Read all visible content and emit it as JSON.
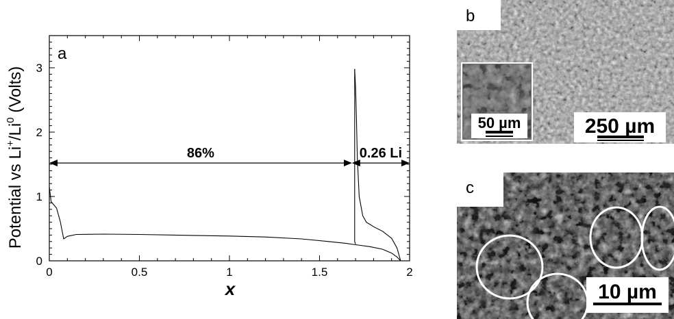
{
  "figure": {
    "panel_a": {
      "label": "a",
      "ylabel_main": "Potential vs Li",
      "ylabel_sup1": "+",
      "ylabel_mid": "/Li",
      "ylabel_sup2": "0",
      "ylabel_end": " (Volts)",
      "xlabel": "x",
      "annotation_left": "86%",
      "annotation_right": "0.26 Li"
    },
    "panel_b": {
      "label": "b",
      "inset_scale": "50 µm",
      "main_scale": "250 µm"
    },
    "panel_c": {
      "label": "c",
      "scale": "10 µm"
    },
    "colors": {
      "line": "#000000",
      "sem_b_background": "#9a9a9a",
      "sem_c_background": "#3a3a3a",
      "circle": "#ffffff"
    }
  },
  "chart_data": {
    "type": "line",
    "title": "",
    "xlabel": "x",
    "ylabel": "Potential vs Li+/Li0 (Volts)",
    "xlim": [
      0,
      2
    ],
    "ylim": [
      0,
      3.5
    ],
    "x_ticks": [
      0,
      0.5,
      1,
      1.5,
      2
    ],
    "x_tick_labels": [
      "0",
      "0.5",
      "1",
      "1.5",
      "2"
    ],
    "y_ticks": [
      0,
      1,
      2,
      3
    ],
    "y_tick_labels": [
      "0",
      "1",
      "2",
      "3"
    ],
    "grid": false,
    "series": [
      {
        "role": "discharge",
        "points": [
          [
            0.0,
            1.15
          ],
          [
            0.01,
            0.92
          ],
          [
            0.04,
            0.82
          ],
          [
            0.06,
            0.62
          ],
          [
            0.08,
            0.34
          ],
          [
            0.1,
            0.38
          ],
          [
            0.15,
            0.41
          ],
          [
            0.3,
            0.415
          ],
          [
            0.5,
            0.41
          ],
          [
            0.8,
            0.395
          ],
          [
            1.0,
            0.385
          ],
          [
            1.2,
            0.37
          ],
          [
            1.4,
            0.34
          ],
          [
            1.55,
            0.3
          ],
          [
            1.65,
            0.27
          ],
          [
            1.7,
            0.25
          ],
          [
            1.78,
            0.22
          ],
          [
            1.85,
            0.18
          ],
          [
            1.9,
            0.12
          ],
          [
            1.93,
            0.06
          ],
          [
            1.95,
            0.0
          ]
        ]
      },
      {
        "role": "charge",
        "points": [
          [
            1.95,
            0.0
          ],
          [
            1.93,
            0.2
          ],
          [
            1.9,
            0.35
          ],
          [
            1.85,
            0.46
          ],
          [
            1.8,
            0.53
          ],
          [
            1.76,
            0.6
          ],
          [
            1.74,
            0.7
          ],
          [
            1.72,
            1.0
          ],
          [
            1.71,
            1.6
          ],
          [
            1.705,
            2.2
          ],
          [
            1.7,
            2.7
          ],
          [
            1.695,
            2.98
          ]
        ]
      },
      {
        "role": "jump",
        "points": [
          [
            1.695,
            2.98
          ],
          [
            1.695,
            0.3
          ],
          [
            1.7,
            0.26
          ]
        ]
      }
    ],
    "annotations": [
      {
        "text": "86%",
        "x_from": 0,
        "x_to": 1.68,
        "y": 1.52
      },
      {
        "text": "0.26 Li",
        "x_from": 1.68,
        "x_to": 2.0,
        "y": 1.52
      }
    ]
  }
}
